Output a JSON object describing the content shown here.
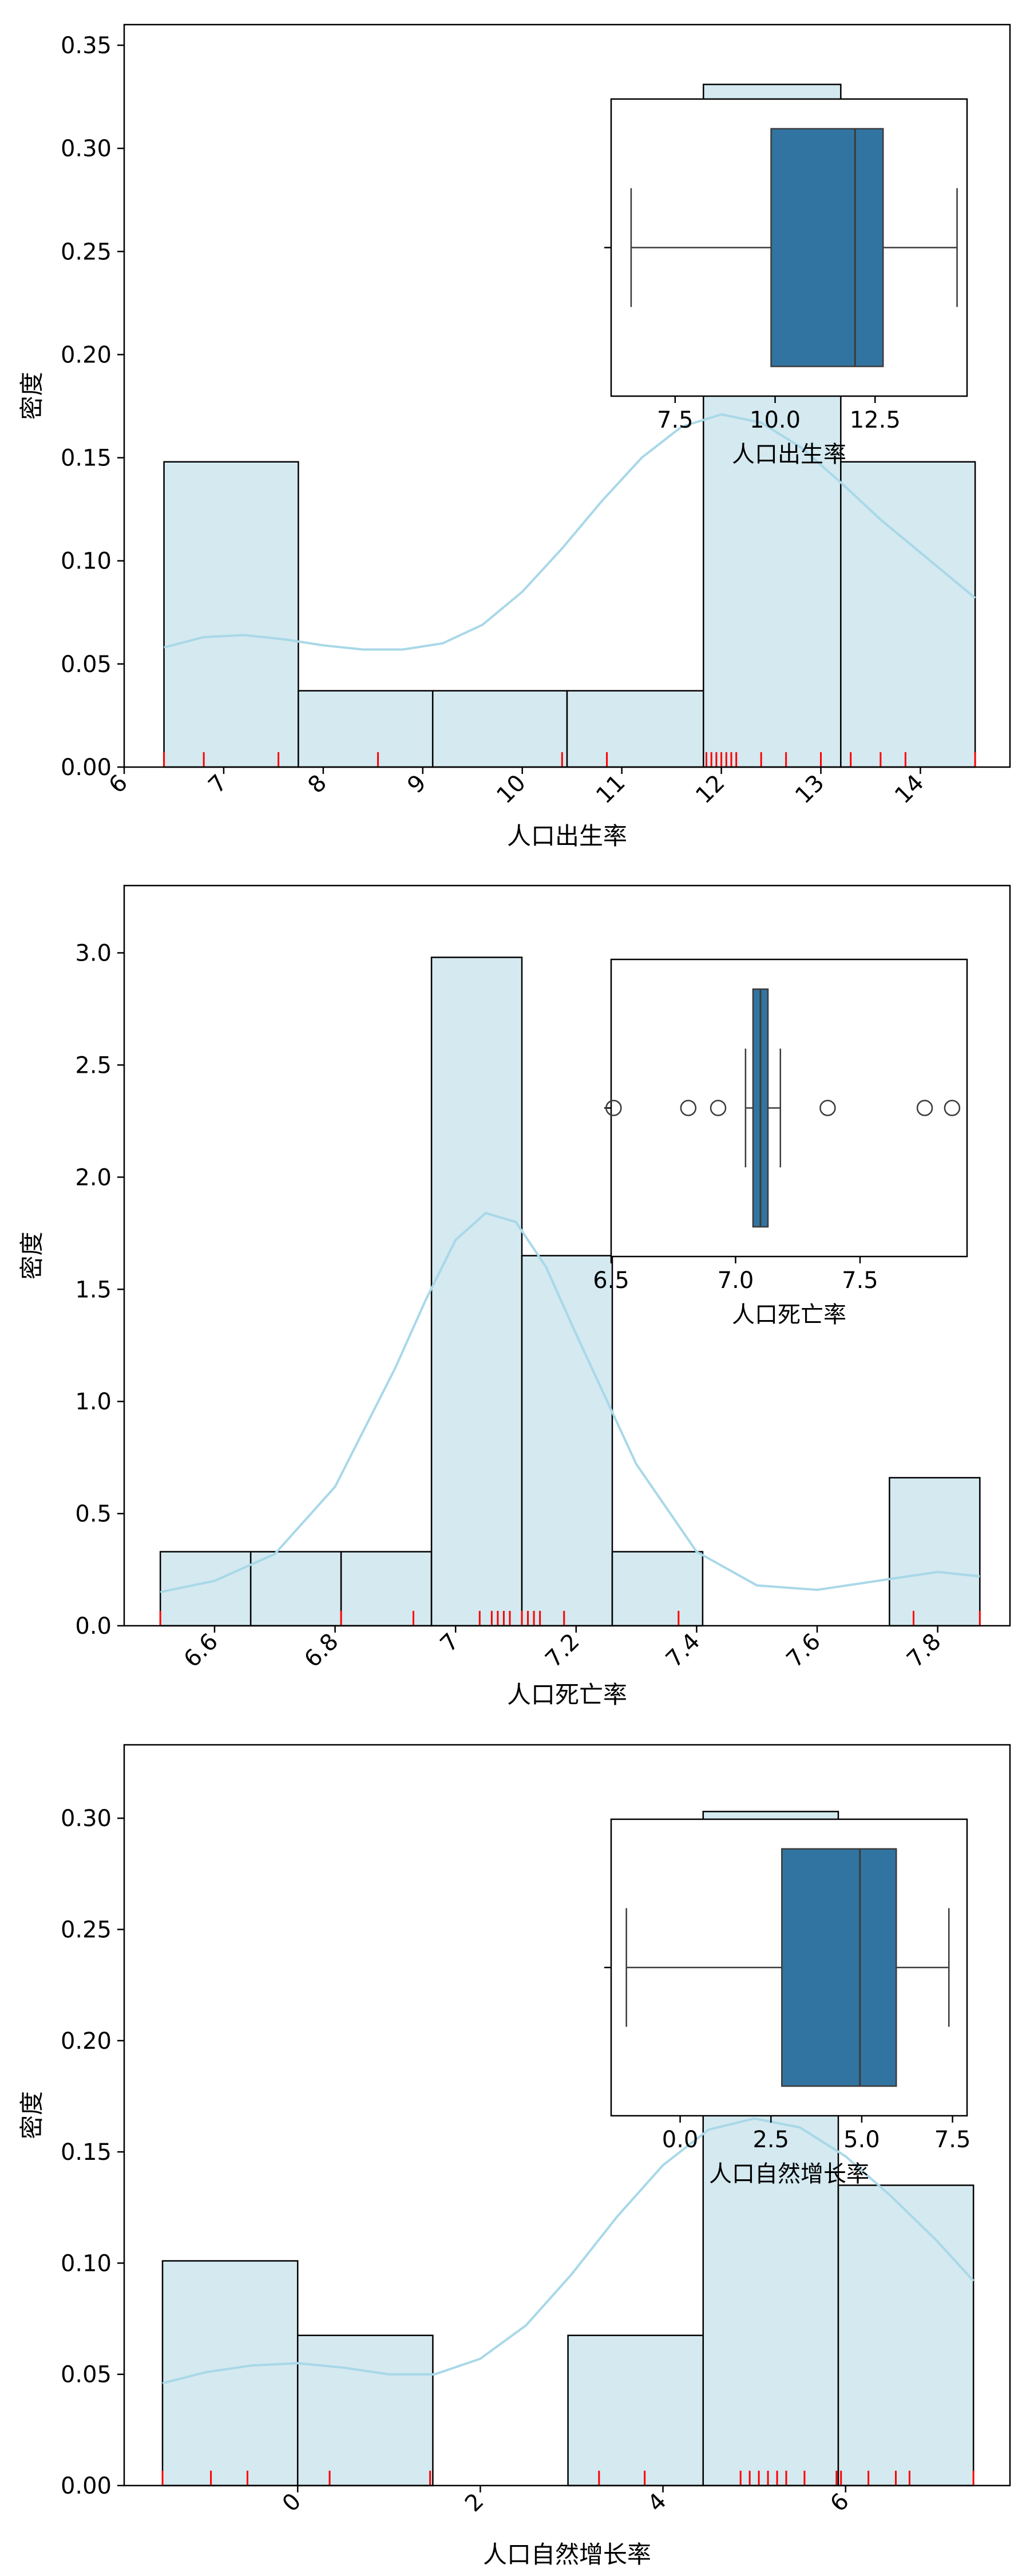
{
  "chart_data": [
    {
      "type": "histogram",
      "xlabel": "人口出生率",
      "ylabel": "密度",
      "xlim": [
        6.0,
        14.9
      ],
      "ylim": [
        0.0,
        0.36
      ],
      "xticks": [
        6,
        7,
        8,
        9,
        10,
        11,
        12,
        13,
        14
      ],
      "yticks": [
        0.0,
        0.05,
        0.1,
        0.15,
        0.2,
        0.25,
        0.3,
        0.35
      ],
      "ytick_labels": [
        "0.00",
        "0.05",
        "0.10",
        "0.15",
        "0.20",
        "0.25",
        "0.30",
        "0.35"
      ],
      "xtick_rotation": 45,
      "bins": [
        {
          "x0": 6.4,
          "x1": 7.75,
          "density": 0.148
        },
        {
          "x0": 7.75,
          "x1": 9.1,
          "density": 0.037
        },
        {
          "x0": 9.1,
          "x1": 10.45,
          "density": 0.037
        },
        {
          "x0": 10.45,
          "x1": 11.82,
          "density": 0.037
        },
        {
          "x0": 11.82,
          "x1": 13.2,
          "density": 0.331
        },
        {
          "x0": 13.2,
          "x1": 14.55,
          "density": 0.148
        }
      ],
      "kde": {
        "x": [
          6.4,
          6.8,
          7.2,
          7.6,
          8.0,
          8.4,
          8.8,
          9.2,
          9.6,
          10.0,
          10.4,
          10.8,
          11.2,
          11.6,
          12.0,
          12.4,
          12.8,
          13.2,
          13.6,
          14.0,
          14.55
        ],
        "y": [
          0.058,
          0.063,
          0.064,
          0.062,
          0.059,
          0.057,
          0.057,
          0.06,
          0.069,
          0.085,
          0.106,
          0.129,
          0.15,
          0.165,
          0.171,
          0.167,
          0.155,
          0.138,
          0.12,
          0.104,
          0.082
        ]
      },
      "rug": [
        6.4,
        6.8,
        7.55,
        8.55,
        10.4,
        10.85,
        11.85,
        11.9,
        11.95,
        12.0,
        12.05,
        12.1,
        12.15,
        12.4,
        12.65,
        13.0,
        13.3,
        13.6,
        13.85,
        14.55
      ],
      "inset_boxplot": {
        "xlabel": "人口出生率",
        "xlim": [
          5.9,
          14.8
        ],
        "xticks": [
          7.5,
          10.0,
          12.5
        ],
        "xtick_labels": [
          "7.5",
          "10.0",
          "12.5"
        ],
        "min": 6.4,
        "q1": 9.9,
        "median": 12.0,
        "q3": 12.7,
        "max": 14.55,
        "outliers": []
      }
    },
    {
      "type": "histogram",
      "xlabel": "人口死亡率",
      "ylabel": "密度",
      "xlim": [
        6.45,
        7.92
      ],
      "ylim": [
        0.0,
        3.3
      ],
      "xticks": [
        6.6,
        6.8,
        7.0,
        7.2,
        7.4,
        7.6,
        7.8
      ],
      "yticks": [
        0.0,
        0.5,
        1.0,
        1.5,
        2.0,
        2.5,
        3.0
      ],
      "ytick_labels": [
        "0.0",
        "0.5",
        "1.0",
        "1.5",
        "2.0",
        "2.5",
        "3.0"
      ],
      "xtick_rotation": 45,
      "bins": [
        {
          "x0": 6.51,
          "x1": 6.66,
          "density": 0.33
        },
        {
          "x0": 6.66,
          "x1": 6.81,
          "density": 0.33
        },
        {
          "x0": 6.81,
          "x1": 6.96,
          "density": 0.33
        },
        {
          "x0": 6.96,
          "x1": 7.11,
          "density": 2.98
        },
        {
          "x0": 7.11,
          "x1": 7.26,
          "density": 1.65
        },
        {
          "x0": 7.26,
          "x1": 7.41,
          "density": 0.33
        },
        {
          "x0": 7.41,
          "x1": 7.57,
          "density": 0.0
        },
        {
          "x0": 7.57,
          "x1": 7.72,
          "density": 0.0
        },
        {
          "x0": 7.72,
          "x1": 7.87,
          "density": 0.66
        }
      ],
      "kde": {
        "x": [
          6.51,
          6.6,
          6.7,
          6.8,
          6.9,
          6.95,
          7.0,
          7.05,
          7.1,
          7.15,
          7.2,
          7.3,
          7.4,
          7.5,
          7.6,
          7.7,
          7.8,
          7.87
        ],
        "y": [
          0.15,
          0.2,
          0.32,
          0.62,
          1.15,
          1.45,
          1.72,
          1.84,
          1.8,
          1.6,
          1.3,
          0.72,
          0.33,
          0.18,
          0.16,
          0.2,
          0.24,
          0.22
        ]
      },
      "rug": [
        6.51,
        6.81,
        6.93,
        7.04,
        7.06,
        7.07,
        7.08,
        7.09,
        7.11,
        7.12,
        7.13,
        7.14,
        7.18,
        7.37,
        7.76,
        7.87
      ],
      "inset_boxplot": {
        "xlabel": "人口死亡率",
        "xlim": [
          6.5,
          7.93
        ],
        "xticks": [
          6.5,
          7.0,
          7.5
        ],
        "xtick_labels": [
          "6.5",
          "7.0",
          "7.5"
        ],
        "min": 7.04,
        "q1": 7.07,
        "median": 7.1,
        "q3": 7.13,
        "max": 7.18,
        "outliers": [
          6.51,
          6.81,
          6.93,
          7.37,
          7.76,
          7.87
        ]
      }
    },
    {
      "type": "histogram",
      "xlabel": "人口自然增长率",
      "ylabel": "密度",
      "xlim": [
        -1.9,
        7.8
      ],
      "ylim": [
        0.0,
        0.333
      ],
      "xticks": [
        0,
        2,
        4,
        6
      ],
      "yticks": [
        0.0,
        0.05,
        0.1,
        0.15,
        0.2,
        0.25,
        0.3
      ],
      "ytick_labels": [
        "0.00",
        "0.05",
        "0.10",
        "0.15",
        "0.20",
        "0.25",
        "0.30"
      ],
      "xtick_rotation": 45,
      "bins": [
        {
          "x0": -1.48,
          "x1": 0.0,
          "density": 0.101
        },
        {
          "x0": 0.0,
          "x1": 1.48,
          "density": 0.0675
        },
        {
          "x0": 1.48,
          "x1": 2.96,
          "density": 0.0
        },
        {
          "x0": 2.96,
          "x1": 4.44,
          "density": 0.0675
        },
        {
          "x0": 4.44,
          "x1": 5.92,
          "density": 0.303
        },
        {
          "x0": 5.92,
          "x1": 7.4,
          "density": 0.135
        }
      ],
      "kde": {
        "x": [
          -1.48,
          -1.0,
          -0.5,
          0.0,
          0.5,
          1.0,
          1.5,
          2.0,
          2.5,
          3.0,
          3.5,
          4.0,
          4.5,
          5.0,
          5.5,
          6.0,
          6.5,
          7.0,
          7.4
        ],
        "y": [
          0.046,
          0.051,
          0.054,
          0.055,
          0.053,
          0.05,
          0.05,
          0.057,
          0.072,
          0.095,
          0.121,
          0.144,
          0.16,
          0.165,
          0.161,
          0.148,
          0.13,
          0.11,
          0.092
        ]
      },
      "rug": [
        -1.48,
        -0.95,
        -0.55,
        0.35,
        1.45,
        3.3,
        3.8,
        4.85,
        4.95,
        5.05,
        5.15,
        5.25,
        5.35,
        5.55,
        5.9,
        5.95,
        6.25,
        6.55,
        6.7,
        7.4
      ],
      "inset_boxplot": {
        "xlabel": "人口自然增长率",
        "xlim": [
          -1.9,
          7.9
        ],
        "xticks": [
          0.0,
          2.5,
          5.0,
          7.5
        ],
        "xtick_labels": [
          "0.0",
          "2.5",
          "5.0",
          "7.5"
        ],
        "min": -1.48,
        "q1": 2.8,
        "median": 4.95,
        "q3": 5.95,
        "max": 7.4,
        "outliers": []
      }
    }
  ]
}
